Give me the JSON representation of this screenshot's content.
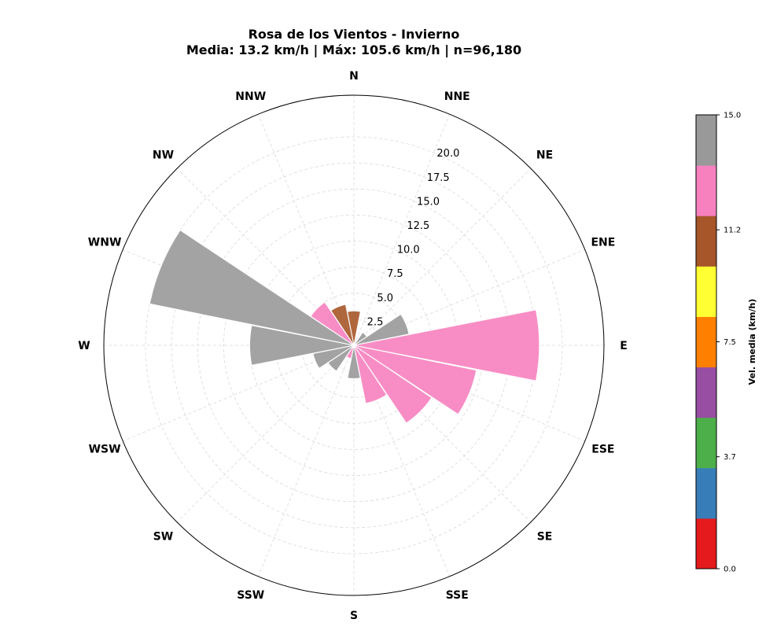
{
  "chart_data": {
    "type": "polar-bar",
    "title": "Rosa de los Vientos - Invierno",
    "subtitle": "Media: 13.2 km/h | Máx: 105.6 km/h | n=96,180",
    "directions": [
      "N",
      "NNE",
      "NE",
      "ENE",
      "E",
      "ESE",
      "SE",
      "SSE",
      "S",
      "SSW",
      "SW",
      "WSW",
      "W",
      "WNW",
      "NW",
      "NNW"
    ],
    "values": [
      3.3,
      0.4,
      1.5,
      5.4,
      17.8,
      12.0,
      9.0,
      5.7,
      3.2,
      1.3,
      3.0,
      4.0,
      10.0,
      20.0,
      5.0,
      4.0
    ],
    "colors": [
      "#a65628",
      "#f781bf",
      "#999999",
      "#999999",
      "#f781bf",
      "#f781bf",
      "#f781bf",
      "#f781bf",
      "#999999",
      "#f781bf",
      "#999999",
      "#999999",
      "#999999",
      "#999999",
      "#f781bf",
      "#a65628"
    ],
    "radial_ticks": [
      "2.5",
      "5.0",
      "7.5",
      "10.0",
      "12.5",
      "15.0",
      "17.5",
      "20.0"
    ],
    "radial_tick_values": [
      2.5,
      5.0,
      7.5,
      10.0,
      12.5,
      15.0,
      17.5,
      20.0
    ],
    "rmax": 24,
    "grid": true,
    "colorbar": {
      "label": "Vel. media (km/h)",
      "tick_labels": [
        "0.0",
        "3.7",
        "7.5",
        "11.2",
        "15.0"
      ],
      "tick_values": [
        0.0,
        3.7,
        7.5,
        11.2,
        15.0
      ],
      "min": 0,
      "max": 15,
      "colors": [
        "#e41a1c",
        "#377eb8",
        "#4daf4a",
        "#984ea3",
        "#ff7f00",
        "#ffff33",
        "#a65628",
        "#f781bf",
        "#999999"
      ]
    }
  }
}
